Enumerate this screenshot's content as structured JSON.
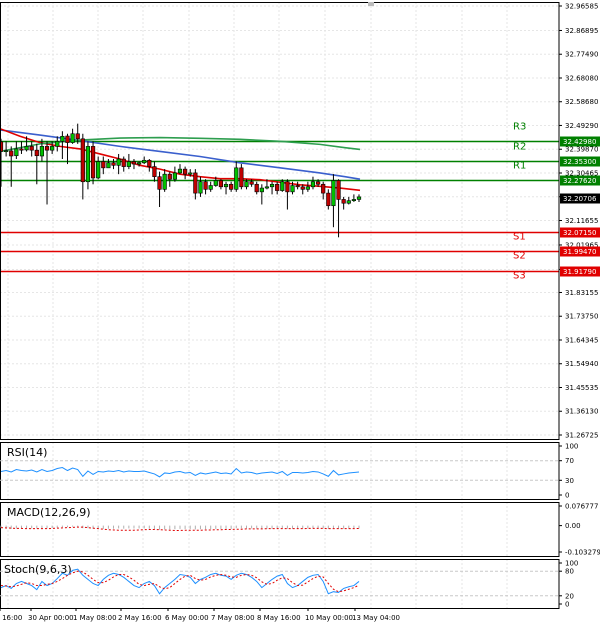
{
  "chart_data": {
    "type": "candlestick",
    "price_axis": {
      "ticks": [
        "32.96585",
        "32.86895",
        "32.77490",
        "32.68080",
        "32.58680",
        "32.49290",
        "32.39870",
        "32.30465",
        "32.21060",
        "32.11655",
        "32.01965",
        "31.92270",
        "31.83155",
        "31.73750",
        "31.64345",
        "31.54940",
        "31.45535",
        "31.36130",
        "31.26725"
      ],
      "range": [
        31.26725,
        32.96585
      ]
    },
    "time_axis": {
      "labels": [
        "r 16:00",
        "30 Apr 00:00",
        "1 May 08:00",
        "2 May 16:00",
        "6 May 00:00",
        "7 May 08:00",
        "8 May 16:00",
        "10 May 00:00",
        "13 May 04:00"
      ]
    },
    "current_price": {
      "value": 32.20706,
      "label": "32.20706"
    },
    "levels": [
      {
        "name": "R3",
        "value": 32.4298,
        "label": "32.42980",
        "color": "#008000"
      },
      {
        "name": "R2",
        "value": 32.353,
        "label": "32.35300",
        "color": "#008000"
      },
      {
        "name": "R1",
        "value": 32.2762,
        "label": "32.27620",
        "color": "#008000"
      },
      {
        "name": "S1",
        "value": 32.0715,
        "label": "32.07150",
        "color": "#e00000"
      },
      {
        "name": "S2",
        "value": 31.9947,
        "label": "31.99470",
        "color": "#e00000"
      },
      {
        "name": "S3",
        "value": 31.9179,
        "label": "31.91790",
        "color": "#e00000"
      }
    ],
    "moving_averages": [
      {
        "color": "#3a5fcd",
        "points": [
          [
            0,
            32.475
          ],
          [
            40,
            32.455
          ],
          [
            80,
            32.433
          ],
          [
            120,
            32.41
          ],
          [
            160,
            32.39
          ],
          [
            200,
            32.37
          ],
          [
            240,
            32.345
          ],
          [
            280,
            32.325
          ],
          [
            320,
            32.305
          ],
          [
            345,
            32.29
          ],
          [
            360,
            32.28
          ]
        ]
      },
      {
        "color": "#e00000",
        "points": [
          [
            0,
            32.48
          ],
          [
            20,
            32.45
          ],
          [
            40,
            32.425
          ],
          [
            60,
            32.41
          ],
          [
            80,
            32.4
          ],
          [
            100,
            32.38
          ],
          [
            120,
            32.36
          ],
          [
            140,
            32.335
          ],
          [
            160,
            32.32
          ],
          [
            180,
            32.3
          ],
          [
            200,
            32.29
          ],
          [
            220,
            32.282
          ],
          [
            240,
            32.282
          ],
          [
            260,
            32.278
          ],
          [
            280,
            32.268
          ],
          [
            300,
            32.258
          ],
          [
            320,
            32.252
          ],
          [
            340,
            32.245
          ],
          [
            360,
            32.236
          ]
        ]
      },
      {
        "color": "#2e9e4f",
        "points": [
          [
            0,
            32.39
          ],
          [
            40,
            32.42
          ],
          [
            80,
            32.435
          ],
          [
            120,
            32.443
          ],
          [
            160,
            32.445
          ],
          [
            200,
            32.442
          ],
          [
            240,
            32.438
          ],
          [
            280,
            32.43
          ],
          [
            320,
            32.418
          ],
          [
            345,
            32.405
          ],
          [
            360,
            32.398
          ]
        ]
      }
    ],
    "candles": [
      [
        32.428,
        32.39,
        32.44,
        32.25
      ],
      [
        32.39,
        32.393,
        32.43,
        32.37
      ],
      [
        32.392,
        32.372,
        32.41,
        32.25
      ],
      [
        32.373,
        32.4,
        32.43,
        32.36
      ],
      [
        32.4,
        32.395,
        32.43,
        32.38
      ],
      [
        32.396,
        32.41,
        32.45,
        32.39
      ],
      [
        32.41,
        32.395,
        32.43,
        32.37
      ],
      [
        32.395,
        32.373,
        32.42,
        32.26
      ],
      [
        32.372,
        32.41,
        32.44,
        32.35
      ],
      [
        32.41,
        32.395,
        32.43,
        32.18
      ],
      [
        32.395,
        32.41,
        32.43,
        32.38
      ],
      [
        32.41,
        32.43,
        32.45,
        32.39
      ],
      [
        32.43,
        32.45,
        32.47,
        32.36
      ],
      [
        32.451,
        32.425,
        32.46,
        32.34
      ],
      [
        32.425,
        32.46,
        32.48,
        32.42
      ],
      [
        32.46,
        32.44,
        32.5,
        32.42
      ],
      [
        32.44,
        32.27,
        32.46,
        32.2
      ],
      [
        32.27,
        32.41,
        32.43,
        32.24
      ],
      [
        32.41,
        32.285,
        32.43,
        32.26
      ],
      [
        32.285,
        32.35,
        32.37,
        32.28
      ],
      [
        32.35,
        32.325,
        32.37,
        32.3
      ],
      [
        32.325,
        32.345,
        32.36,
        32.33
      ],
      [
        32.345,
        32.335,
        32.36,
        32.32
      ],
      [
        32.335,
        32.36,
        32.38,
        32.3
      ],
      [
        32.36,
        32.33,
        32.37,
        32.31
      ],
      [
        32.33,
        32.35,
        32.38,
        32.32
      ],
      [
        32.35,
        32.34,
        32.36,
        32.32
      ],
      [
        32.34,
        32.345,
        32.35,
        32.33
      ],
      [
        32.345,
        32.355,
        32.37,
        32.34
      ],
      [
        32.355,
        32.33,
        32.36,
        32.31
      ],
      [
        32.33,
        32.29,
        32.35,
        32.27
      ],
      [
        32.29,
        32.24,
        32.31,
        32.17
      ],
      [
        32.24,
        32.3,
        32.32,
        32.23
      ],
      [
        32.3,
        32.28,
        32.31,
        32.25
      ],
      [
        32.28,
        32.305,
        32.33,
        32.27
      ],
      [
        32.305,
        32.32,
        32.34,
        32.3
      ],
      [
        32.32,
        32.3,
        32.33,
        32.28
      ],
      [
        32.3,
        32.305,
        32.32,
        32.29
      ],
      [
        32.305,
        32.225,
        32.32,
        32.2
      ],
      [
        32.225,
        32.27,
        32.29,
        32.21
      ],
      [
        32.27,
        32.24,
        32.28,
        32.22
      ],
      [
        32.24,
        32.255,
        32.27,
        32.23
      ],
      [
        32.255,
        32.275,
        32.29,
        32.25
      ],
      [
        32.275,
        32.25,
        32.28,
        32.24
      ],
      [
        32.25,
        32.26,
        32.27,
        32.22
      ],
      [
        32.26,
        32.24,
        32.27,
        32.23
      ],
      [
        32.24,
        32.325,
        32.35,
        32.23
      ],
      [
        32.325,
        32.25,
        32.34,
        32.24
      ],
      [
        32.25,
        32.27,
        32.28,
        32.24
      ],
      [
        32.27,
        32.26,
        32.28,
        32.25
      ],
      [
        32.26,
        32.23,
        32.27,
        32.22
      ],
      [
        32.23,
        32.245,
        32.26,
        32.18
      ],
      [
        32.245,
        32.25,
        32.28,
        32.24
      ],
      [
        32.25,
        32.26,
        32.27,
        32.22
      ],
      [
        32.26,
        32.235,
        32.27,
        32.22
      ],
      [
        32.235,
        32.27,
        32.28,
        32.23
      ],
      [
        32.27,
        32.23,
        32.28,
        32.16
      ],
      [
        32.23,
        32.255,
        32.27,
        32.22
      ],
      [
        32.255,
        32.25,
        32.27,
        32.24
      ],
      [
        32.25,
        32.24,
        32.26,
        32.22
      ],
      [
        32.24,
        32.25,
        32.27,
        32.23
      ],
      [
        32.25,
        32.27,
        32.29,
        32.24
      ],
      [
        32.27,
        32.26,
        32.28,
        32.25
      ],
      [
        32.26,
        32.225,
        32.27,
        32.2
      ],
      [
        32.225,
        32.175,
        32.24,
        32.16
      ],
      [
        32.175,
        32.275,
        32.3,
        32.09
      ],
      [
        32.275,
        32.2,
        32.28,
        32.05
      ],
      [
        32.2,
        32.185,
        32.21,
        32.16
      ],
      [
        32.185,
        32.195,
        32.21,
        32.18
      ],
      [
        32.195,
        32.2,
        32.22,
        32.19
      ],
      [
        32.2,
        32.21,
        32.22,
        32.19
      ]
    ],
    "indicators": [
      {
        "name": "RSI(14)",
        "ticks": [
          "100",
          "70",
          "30",
          "0"
        ],
        "range": [
          0,
          100
        ],
        "levels": [
          70,
          30
        ]
      },
      {
        "name": "MACD(12,26,9)",
        "ticks": [
          "0.076777",
          "0.00",
          "-0.103279"
        ],
        "range": [
          -0.103279,
          0.076777
        ]
      },
      {
        "name": "Stoch(9,6,3)",
        "ticks": [
          "100",
          "80",
          "20",
          "0"
        ],
        "range": [
          0,
          100
        ],
        "levels": [
          80,
          20
        ]
      }
    ],
    "rsi_values": [
      48,
      50,
      47,
      52,
      50,
      49,
      51,
      47,
      52,
      48,
      50,
      54,
      56,
      50,
      55,
      52,
      38,
      49,
      42,
      48,
      47,
      49,
      48,
      50,
      47,
      49,
      48,
      48,
      49,
      46,
      43,
      37,
      45,
      44,
      47,
      48,
      45,
      46,
      40,
      45,
      43,
      45,
      47,
      44,
      45,
      43,
      54,
      45,
      47,
      46,
      43,
      45,
      46,
      47,
      44,
      48,
      40,
      46,
      46,
      45,
      46,
      48,
      47,
      43,
      38,
      50,
      41,
      43,
      45,
      46,
      47
    ],
    "macd_histogram": [
      -0.01,
      -0.012,
      -0.013,
      -0.012,
      -0.011,
      -0.012,
      -0.011,
      -0.012,
      -0.01,
      -0.011,
      -0.01,
      -0.008,
      -0.006,
      -0.006,
      -0.004,
      -0.004,
      -0.01,
      -0.01,
      -0.012,
      -0.012,
      -0.013,
      -0.012,
      -0.012,
      -0.011,
      -0.012,
      -0.011,
      -0.011,
      -0.011,
      -0.011,
      -0.012,
      -0.013,
      -0.016,
      -0.015,
      -0.015,
      -0.014,
      -0.013,
      -0.013,
      -0.013,
      -0.015,
      -0.014,
      -0.014,
      -0.014,
      -0.013,
      -0.013,
      -0.013,
      -0.013,
      -0.01,
      -0.011,
      -0.011,
      -0.011,
      -0.012,
      -0.012,
      -0.012,
      -0.012,
      -0.012,
      -0.011,
      -0.012,
      -0.012,
      -0.011,
      -0.011,
      -0.011,
      -0.01,
      -0.01,
      -0.011,
      -0.013,
      -0.01,
      -0.012,
      -0.012,
      -0.012,
      -0.011,
      -0.011
    ],
    "macd_signal": [
      -0.008,
      -0.009,
      -0.01,
      -0.011,
      -0.011,
      -0.012,
      -0.012,
      -0.012,
      -0.012,
      -0.012,
      -0.011,
      -0.01,
      -0.009,
      -0.008,
      -0.007,
      -0.006,
      -0.006,
      -0.008,
      -0.01,
      -0.012,
      -0.014,
      -0.016,
      -0.017,
      -0.018,
      -0.018,
      -0.018,
      -0.018,
      -0.017,
      -0.016,
      -0.015,
      -0.015,
      -0.016,
      -0.017,
      -0.018,
      -0.019,
      -0.019,
      -0.018,
      -0.018,
      -0.018,
      -0.018,
      -0.017,
      -0.017,
      -0.016,
      -0.016,
      -0.015,
      -0.015,
      -0.014,
      -0.014,
      -0.013,
      -0.013,
      -0.013,
      -0.013,
      -0.012,
      -0.012,
      -0.012,
      -0.012,
      -0.012,
      -0.012,
      -0.012,
      -0.012,
      -0.011,
      -0.011,
      -0.011,
      -0.011,
      -0.012,
      -0.012,
      -0.012,
      -0.012,
      -0.012,
      -0.012,
      -0.011
    ],
    "stoch_main": [
      40,
      45,
      38,
      50,
      55,
      50,
      45,
      35,
      55,
      45,
      50,
      62,
      75,
      70,
      82,
      85,
      70,
      60,
      50,
      45,
      60,
      70,
      75,
      72,
      65,
      55,
      45,
      40,
      50,
      55,
      45,
      25,
      40,
      50,
      60,
      72,
      70,
      65,
      50,
      60,
      65,
      72,
      75,
      70,
      68,
      60,
      70,
      75,
      72,
      65,
      55,
      40,
      50,
      60,
      68,
      72,
      50,
      40,
      45,
      55,
      65,
      70,
      72,
      55,
      25,
      30,
      28,
      38,
      42,
      45,
      55
    ],
    "stoch_signal": [
      45,
      44,
      42,
      44,
      48,
      52,
      50,
      45,
      45,
      48,
      50,
      55,
      62,
      70,
      76,
      80,
      78,
      70,
      60,
      52,
      52,
      58,
      66,
      72,
      72,
      66,
      58,
      48,
      45,
      48,
      50,
      42,
      37,
      40,
      50,
      60,
      68,
      70,
      62,
      58,
      60,
      66,
      70,
      72,
      70,
      66,
      65,
      70,
      72,
      70,
      64,
      54,
      48,
      50,
      58,
      64,
      62,
      52,
      45,
      46,
      54,
      62,
      68,
      66,
      50,
      36,
      30,
      32,
      36,
      40,
      46
    ]
  }
}
